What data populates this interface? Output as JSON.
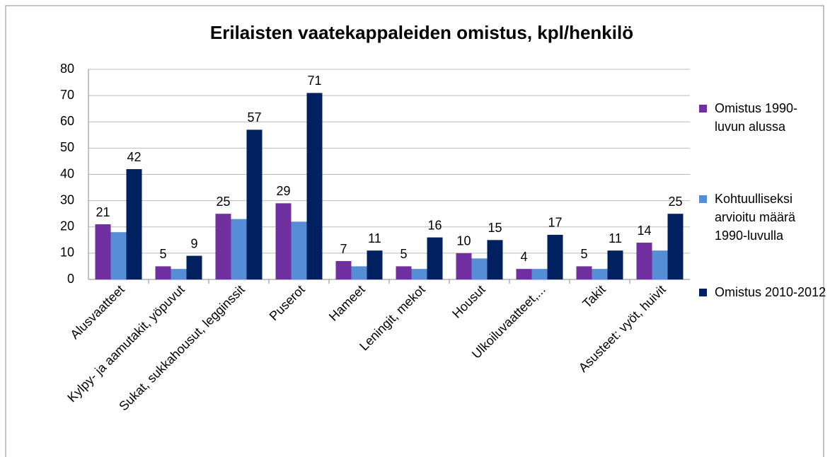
{
  "chart_data": {
    "type": "bar",
    "title": "Erilaisten vaatekappaleiden omistus, kpl/henkilö",
    "categories": [
      "Alusvaatteet",
      "Kylpy- ja aamutakit, yöpuvut",
      "Sukat, sukkahousut, legginssit",
      "Puserot",
      "Hameet",
      "Leningit, mekot",
      "Housut",
      "Ulkoiluvaatteet,...",
      "Takit",
      "Asusteet: vyöt, huivit"
    ],
    "series": [
      {
        "name": "Omistus 1990-luvun alussa",
        "color": "#7030a0",
        "show_labels": true,
        "values": [
          21,
          5,
          25,
          29,
          7,
          5,
          10,
          4,
          5,
          14
        ]
      },
      {
        "name": "Kohtuulliseksi arvioitu määrä 1990-luvulla",
        "color": "#558ed5",
        "show_labels": false,
        "values": [
          18,
          4,
          23,
          22,
          5,
          4,
          8,
          4,
          4,
          11
        ]
      },
      {
        "name": "Omistus 2010-2012",
        "color": "#002060",
        "show_labels": true,
        "values": [
          42,
          9,
          57,
          71,
          11,
          16,
          15,
          17,
          11,
          25
        ]
      }
    ],
    "ylim": [
      0,
      80
    ],
    "yticks": [
      0,
      10,
      20,
      30,
      40,
      50,
      60,
      70,
      80
    ],
    "grid": true,
    "legend": "right"
  }
}
